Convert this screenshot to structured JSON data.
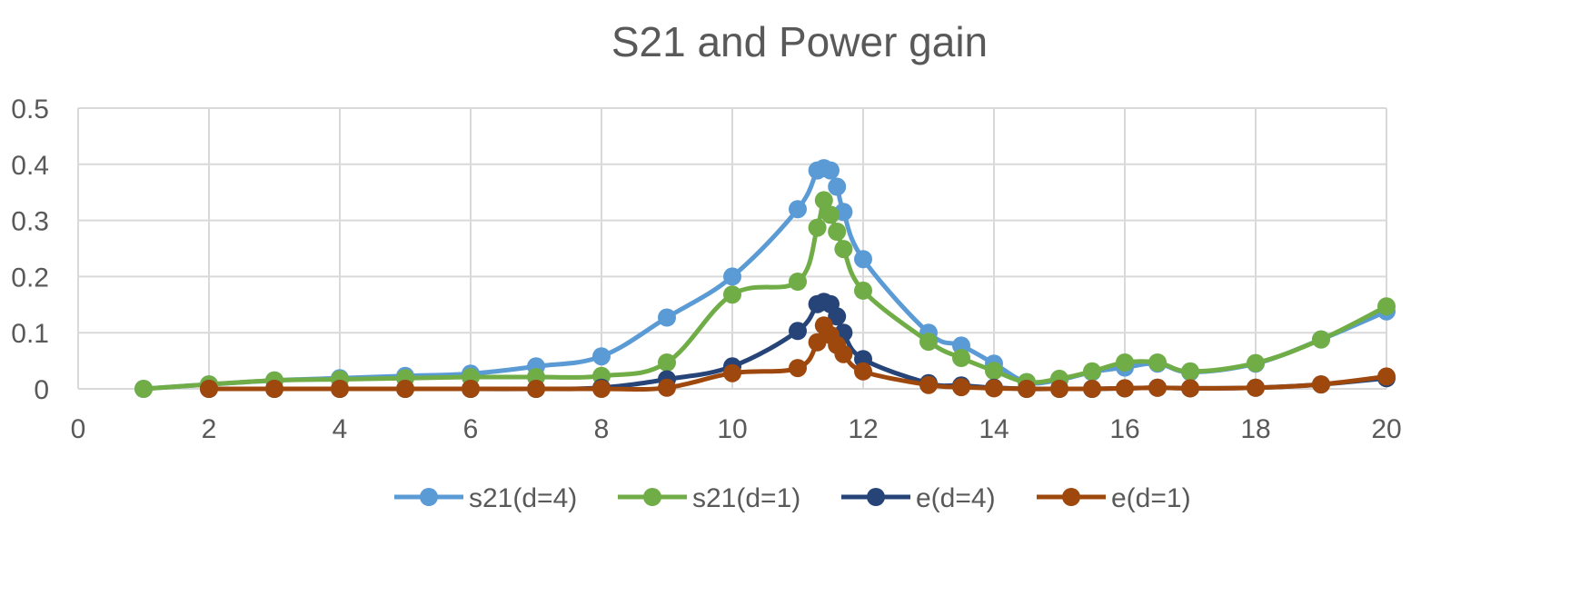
{
  "chart_data": {
    "type": "scatter",
    "title": "S21 and Power gain",
    "xlabel": "",
    "ylabel": "",
    "xlim": [
      0,
      20
    ],
    "ylim": [
      0,
      0.5
    ],
    "x_ticks": [
      "0",
      "2",
      "4",
      "6",
      "8",
      "10",
      "12",
      "14",
      "16",
      "18",
      "20"
    ],
    "y_ticks": [
      "0",
      "0.1",
      "0.2",
      "0.3",
      "0.4",
      "0.5"
    ],
    "grid": true,
    "legend": "bottom",
    "series": [
      {
        "name": "s21(d=4)",
        "color": "#5b9bd5",
        "points": [
          [
            1,
            0
          ],
          [
            2,
            0.008
          ],
          [
            3,
            0.015
          ],
          [
            4,
            0.019
          ],
          [
            5,
            0.023
          ],
          [
            6,
            0.027
          ],
          [
            7,
            0.04
          ],
          [
            8,
            0.058
          ],
          [
            9,
            0.127
          ],
          [
            10,
            0.2
          ],
          [
            11,
            0.32
          ],
          [
            11.3,
            0.389
          ],
          [
            11.4,
            0.393
          ],
          [
            11.5,
            0.389
          ],
          [
            11.6,
            0.36
          ],
          [
            11.7,
            0.315
          ],
          [
            12,
            0.231
          ],
          [
            13,
            0.1
          ],
          [
            13.5,
            0.077
          ],
          [
            14,
            0.045
          ],
          [
            14.5,
            0.012
          ],
          [
            15,
            0.016
          ],
          [
            15.5,
            0.03
          ],
          [
            16,
            0.038
          ],
          [
            16.5,
            0.045
          ],
          [
            17,
            0.03
          ],
          [
            18,
            0.045
          ],
          [
            19,
            0.088
          ],
          [
            20,
            0.138
          ]
        ]
      },
      {
        "name": "s21(d=1)",
        "color": "#70ad47",
        "points": [
          [
            1,
            0
          ],
          [
            2,
            0.008
          ],
          [
            3,
            0.015
          ],
          [
            4,
            0.017
          ],
          [
            5,
            0.019
          ],
          [
            6,
            0.021
          ],
          [
            7,
            0.021
          ],
          [
            8,
            0.023
          ],
          [
            9,
            0.047
          ],
          [
            10,
            0.168
          ],
          [
            11,
            0.191
          ],
          [
            11.3,
            0.287
          ],
          [
            11.4,
            0.336
          ],
          [
            11.5,
            0.31
          ],
          [
            11.6,
            0.28
          ],
          [
            11.7,
            0.249
          ],
          [
            12,
            0.175
          ],
          [
            13,
            0.084
          ],
          [
            13.5,
            0.055
          ],
          [
            14,
            0.032
          ],
          [
            14.5,
            0.012
          ],
          [
            15,
            0.018
          ],
          [
            15.5,
            0.031
          ],
          [
            16,
            0.047
          ],
          [
            16.5,
            0.047
          ],
          [
            17,
            0.031
          ],
          [
            18,
            0.046
          ],
          [
            19,
            0.088
          ],
          [
            20,
            0.147
          ]
        ]
      },
      {
        "name": "e(d=4)",
        "color": "#264478",
        "points": [
          [
            2,
            0
          ],
          [
            3,
            0
          ],
          [
            4,
            0
          ],
          [
            5,
            0
          ],
          [
            6,
            0
          ],
          [
            7,
            0
          ],
          [
            8,
            0.002
          ],
          [
            9,
            0.017
          ],
          [
            10,
            0.04
          ],
          [
            11,
            0.103
          ],
          [
            11.3,
            0.151
          ],
          [
            11.4,
            0.155
          ],
          [
            11.5,
            0.151
          ],
          [
            11.6,
            0.129
          ],
          [
            11.7,
            0.1
          ],
          [
            12,
            0.053
          ],
          [
            13,
            0.01
          ],
          [
            13.5,
            0.006
          ],
          [
            14,
            0.002
          ],
          [
            14.5,
            0
          ],
          [
            15,
            0
          ],
          [
            15.5,
            0
          ],
          [
            16,
            0.001
          ],
          [
            16.5,
            0.002
          ],
          [
            17,
            0.001
          ],
          [
            18,
            0.002
          ],
          [
            19,
            0.008
          ],
          [
            20,
            0.019
          ]
        ]
      },
      {
        "name": "e(d=1)",
        "color": "#9e480e",
        "points": [
          [
            2,
            0
          ],
          [
            3,
            0
          ],
          [
            4,
            0
          ],
          [
            5,
            0
          ],
          [
            6,
            0
          ],
          [
            7,
            0
          ],
          [
            8,
            0
          ],
          [
            9,
            0.002
          ],
          [
            10,
            0.028
          ],
          [
            11,
            0.037
          ],
          [
            11.3,
            0.083
          ],
          [
            11.4,
            0.113
          ],
          [
            11.5,
            0.096
          ],
          [
            11.6,
            0.078
          ],
          [
            11.7,
            0.062
          ],
          [
            12,
            0.031
          ],
          [
            13,
            0.007
          ],
          [
            13.5,
            0.003
          ],
          [
            14,
            0.001
          ],
          [
            14.5,
            0
          ],
          [
            15,
            0
          ],
          [
            15.5,
            0
          ],
          [
            16,
            0.001
          ],
          [
            16.5,
            0.002
          ],
          [
            17,
            0.001
          ],
          [
            18,
            0.002
          ],
          [
            19,
            0.008
          ],
          [
            20,
            0.022
          ]
        ]
      }
    ]
  }
}
